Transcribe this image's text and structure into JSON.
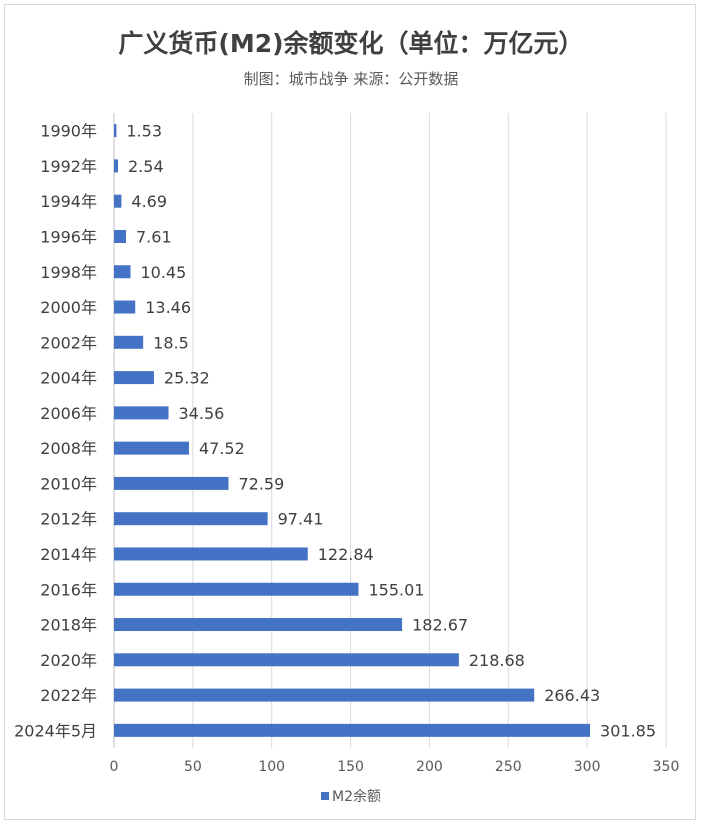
{
  "colors": {
    "bar": "#4472c4",
    "grid": "#d9d9d9",
    "axis": "#bfbfbf"
  },
  "chart_data": {
    "type": "bar",
    "orientation": "horizontal",
    "title": "广义货币(M2)余额变化（单位：万亿元）",
    "subtitle": "制图：城市战争    来源：公开数据",
    "categories": [
      "1990年",
      "1992年",
      "1994年",
      "1996年",
      "1998年",
      "2000年",
      "2002年",
      "2004年",
      "2006年",
      "2008年",
      "2010年",
      "2012年",
      "2014年",
      "2016年",
      "2018年",
      "2020年",
      "2022年",
      "2024年5月"
    ],
    "series": [
      {
        "name": "M2余额",
        "values": [
          1.53,
          2.54,
          4.69,
          7.61,
          10.45,
          13.46,
          18.5,
          25.32,
          34.56,
          47.52,
          72.59,
          97.41,
          122.84,
          155.01,
          182.67,
          218.68,
          266.43,
          301.85
        ]
      }
    ],
    "data_labels": [
      "1.53",
      "2.54",
      "4.69",
      "7.61",
      "10.45",
      "13.46",
      "18.5",
      "25.32",
      "34.56",
      "47.52",
      "72.59",
      "97.41",
      "122.84",
      "155.01",
      "182.67",
      "218.68",
      "266.43",
      "301.85"
    ],
    "xlim": [
      0,
      350
    ],
    "xticks": [
      "0",
      "50",
      "100",
      "150",
      "200",
      "250",
      "300",
      "350"
    ],
    "grid": true,
    "legend_position": "bottom"
  }
}
